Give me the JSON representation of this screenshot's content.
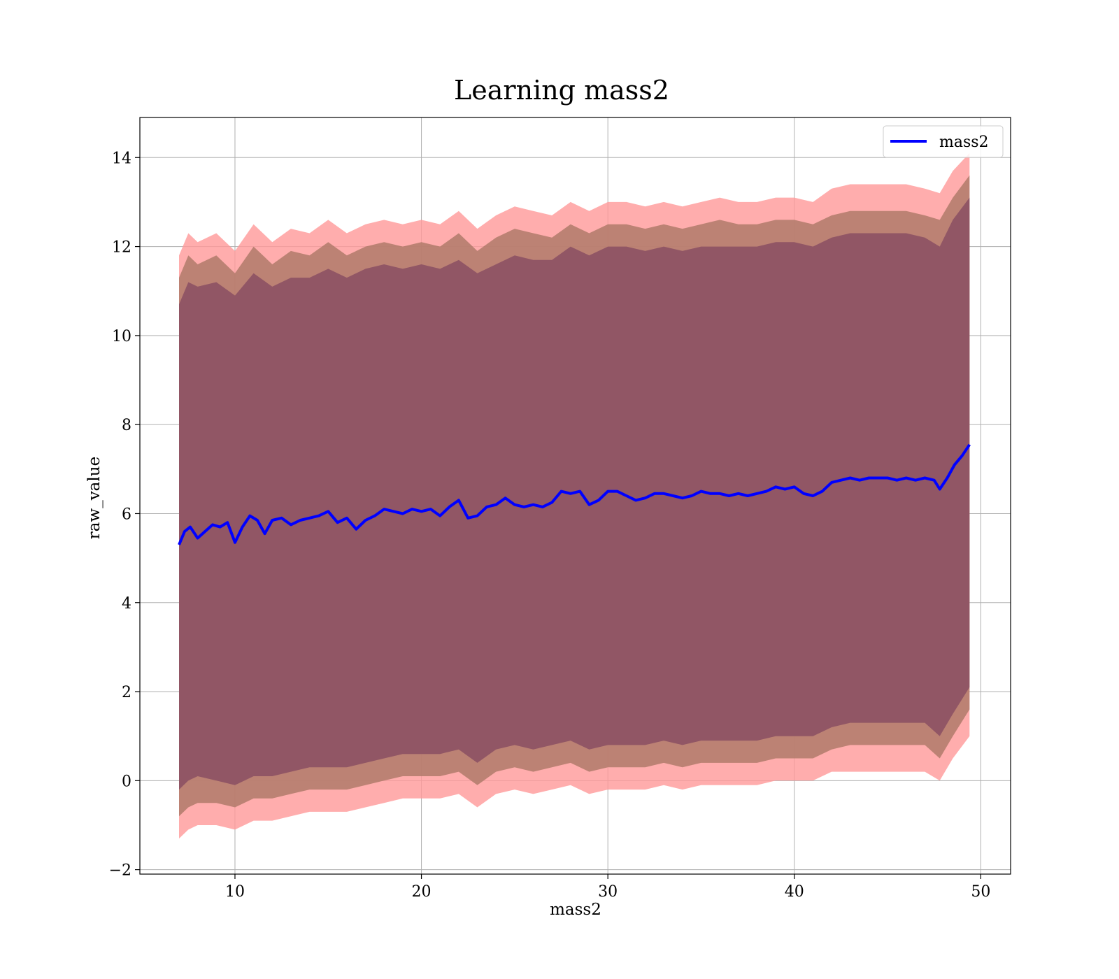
{
  "colors": {
    "line": "#0000ff",
    "band_outer": "#ff9999",
    "band_middle": "#b07a6a",
    "band_inner": "#8a4f63",
    "grid": "#b0b0b0",
    "axes": "#000000"
  },
  "chart_data": {
    "type": "area",
    "title": "Learning mass2",
    "xlabel": "mass2",
    "ylabel": "raw_value",
    "xlim": [
      4.9,
      51.6
    ],
    "ylim": [
      -2.1,
      14.9
    ],
    "xticks": [
      10,
      20,
      30,
      40,
      50
    ],
    "yticks": [
      -2,
      0,
      2,
      4,
      6,
      8,
      10,
      12,
      14
    ],
    "grid": true,
    "legend": {
      "position": "top-right",
      "entries": [
        "mass2"
      ]
    },
    "bands_description_levels": [
      "outer",
      "middle",
      "inner"
    ],
    "series": [
      {
        "name": "mass2",
        "kind": "line",
        "x": [
          7.0,
          7.3,
          7.6,
          8.0,
          8.4,
          8.8,
          9.2,
          9.6,
          10.0,
          10.4,
          10.8,
          11.2,
          11.6,
          12.0,
          12.5,
          13.0,
          13.5,
          14.0,
          14.5,
          15.0,
          15.5,
          16.0,
          16.5,
          17.0,
          17.5,
          18.0,
          18.5,
          19.0,
          19.5,
          20.0,
          20.5,
          21.0,
          21.5,
          22.0,
          22.5,
          23.0,
          23.5,
          24.0,
          24.5,
          25.0,
          25.5,
          26.0,
          26.5,
          27.0,
          27.5,
          28.0,
          28.5,
          29.0,
          29.5,
          30.0,
          30.5,
          31.0,
          31.5,
          32.0,
          32.5,
          33.0,
          33.5,
          34.0,
          34.5,
          35.0,
          35.5,
          36.0,
          36.5,
          37.0,
          37.5,
          38.0,
          38.5,
          39.0,
          39.5,
          40.0,
          40.5,
          41.0,
          41.5,
          42.0,
          42.5,
          43.0,
          43.5,
          44.0,
          44.5,
          45.0,
          45.5,
          46.0,
          46.5,
          47.0,
          47.5,
          47.8,
          48.2,
          48.6,
          49.0,
          49.4
        ],
        "y": [
          5.3,
          5.6,
          5.7,
          5.45,
          5.6,
          5.75,
          5.7,
          5.8,
          5.35,
          5.7,
          5.95,
          5.85,
          5.55,
          5.85,
          5.9,
          5.75,
          5.85,
          5.9,
          5.95,
          6.05,
          5.8,
          5.9,
          5.65,
          5.85,
          5.95,
          6.1,
          6.05,
          6.0,
          6.1,
          6.05,
          6.1,
          5.95,
          6.15,
          6.3,
          5.9,
          5.95,
          6.15,
          6.2,
          6.35,
          6.2,
          6.15,
          6.2,
          6.15,
          6.25,
          6.5,
          6.45,
          6.5,
          6.2,
          6.3,
          6.5,
          6.5,
          6.4,
          6.3,
          6.35,
          6.45,
          6.45,
          6.4,
          6.35,
          6.4,
          6.5,
          6.45,
          6.45,
          6.4,
          6.45,
          6.4,
          6.45,
          6.5,
          6.6,
          6.55,
          6.6,
          6.45,
          6.4,
          6.5,
          6.7,
          6.75,
          6.8,
          6.75,
          6.8,
          6.8,
          6.8,
          6.75,
          6.8,
          6.75,
          6.8,
          6.75,
          6.55,
          6.8,
          7.1,
          7.3,
          7.55
        ]
      },
      {
        "name": "",
        "kind": "band",
        "level": "outer",
        "x": [
          7.0,
          7.5,
          8.0,
          9.0,
          10.0,
          11.0,
          12.0,
          13.0,
          14.0,
          15.0,
          16.0,
          17.0,
          18.0,
          19.0,
          20.0,
          21.0,
          22.0,
          23.0,
          24.0,
          25.0,
          26.0,
          27.0,
          28.0,
          29.0,
          30.0,
          31.0,
          32.0,
          33.0,
          34.0,
          35.0,
          36.0,
          37.0,
          38.0,
          39.0,
          40.0,
          41.0,
          42.0,
          43.0,
          44.0,
          45.0,
          46.0,
          47.0,
          47.8,
          48.5,
          49.4
        ],
        "upper": [
          11.8,
          12.3,
          12.1,
          12.3,
          11.9,
          12.5,
          12.1,
          12.4,
          12.3,
          12.6,
          12.3,
          12.5,
          12.6,
          12.5,
          12.6,
          12.5,
          12.8,
          12.4,
          12.7,
          12.9,
          12.8,
          12.7,
          13.0,
          12.8,
          13.0,
          13.0,
          12.9,
          13.0,
          12.9,
          13.0,
          13.1,
          13.0,
          13.0,
          13.1,
          13.1,
          13.0,
          13.3,
          13.4,
          13.4,
          13.4,
          13.4,
          13.3,
          13.2,
          13.7,
          14.1
        ],
        "lower": [
          -1.3,
          -1.1,
          -1.0,
          -1.0,
          -1.1,
          -0.9,
          -0.9,
          -0.8,
          -0.7,
          -0.7,
          -0.7,
          -0.6,
          -0.5,
          -0.4,
          -0.4,
          -0.4,
          -0.3,
          -0.6,
          -0.3,
          -0.2,
          -0.3,
          -0.2,
          -0.1,
          -0.3,
          -0.2,
          -0.2,
          -0.2,
          -0.1,
          -0.2,
          -0.1,
          -0.1,
          -0.1,
          -0.1,
          0.0,
          0.0,
          0.0,
          0.2,
          0.2,
          0.2,
          0.2,
          0.2,
          0.2,
          0.0,
          0.5,
          1.0
        ]
      },
      {
        "name": "",
        "kind": "band",
        "level": "middle",
        "x": [
          7.0,
          7.5,
          8.0,
          9.0,
          10.0,
          11.0,
          12.0,
          13.0,
          14.0,
          15.0,
          16.0,
          17.0,
          18.0,
          19.0,
          20.0,
          21.0,
          22.0,
          23.0,
          24.0,
          25.0,
          26.0,
          27.0,
          28.0,
          29.0,
          30.0,
          31.0,
          32.0,
          33.0,
          34.0,
          35.0,
          36.0,
          37.0,
          38.0,
          39.0,
          40.0,
          41.0,
          42.0,
          43.0,
          44.0,
          45.0,
          46.0,
          47.0,
          47.8,
          48.5,
          49.4
        ],
        "upper": [
          11.3,
          11.8,
          11.6,
          11.8,
          11.4,
          12.0,
          11.6,
          11.9,
          11.8,
          12.1,
          11.8,
          12.0,
          12.1,
          12.0,
          12.1,
          12.0,
          12.3,
          11.9,
          12.2,
          12.4,
          12.3,
          12.2,
          12.5,
          12.3,
          12.5,
          12.5,
          12.4,
          12.5,
          12.4,
          12.5,
          12.6,
          12.5,
          12.5,
          12.6,
          12.6,
          12.5,
          12.7,
          12.8,
          12.8,
          12.8,
          12.8,
          12.7,
          12.6,
          13.1,
          13.6
        ],
        "lower": [
          -0.8,
          -0.6,
          -0.5,
          -0.5,
          -0.6,
          -0.4,
          -0.4,
          -0.3,
          -0.2,
          -0.2,
          -0.2,
          -0.1,
          0.0,
          0.1,
          0.1,
          0.1,
          0.2,
          -0.1,
          0.2,
          0.3,
          0.2,
          0.3,
          0.4,
          0.2,
          0.3,
          0.3,
          0.3,
          0.4,
          0.3,
          0.4,
          0.4,
          0.4,
          0.4,
          0.5,
          0.5,
          0.5,
          0.7,
          0.8,
          0.8,
          0.8,
          0.8,
          0.8,
          0.5,
          1.0,
          1.6
        ]
      },
      {
        "name": "",
        "kind": "band",
        "level": "inner",
        "x": [
          7.0,
          7.5,
          8.0,
          9.0,
          10.0,
          11.0,
          12.0,
          13.0,
          14.0,
          15.0,
          16.0,
          17.0,
          18.0,
          19.0,
          20.0,
          21.0,
          22.0,
          23.0,
          24.0,
          25.0,
          26.0,
          27.0,
          28.0,
          29.0,
          30.0,
          31.0,
          32.0,
          33.0,
          34.0,
          35.0,
          36.0,
          37.0,
          38.0,
          39.0,
          40.0,
          41.0,
          42.0,
          43.0,
          44.0,
          45.0,
          46.0,
          47.0,
          47.8,
          48.5,
          49.4
        ],
        "upper": [
          10.7,
          11.2,
          11.1,
          11.2,
          10.9,
          11.4,
          11.1,
          11.3,
          11.3,
          11.5,
          11.3,
          11.5,
          11.6,
          11.5,
          11.6,
          11.5,
          11.7,
          11.4,
          11.6,
          11.8,
          11.7,
          11.7,
          12.0,
          11.8,
          12.0,
          12.0,
          11.9,
          12.0,
          11.9,
          12.0,
          12.0,
          12.0,
          12.0,
          12.1,
          12.1,
          12.0,
          12.2,
          12.3,
          12.3,
          12.3,
          12.3,
          12.2,
          12.0,
          12.6,
          13.1
        ],
        "lower": [
          -0.2,
          0.0,
          0.1,
          0.0,
          -0.1,
          0.1,
          0.1,
          0.2,
          0.3,
          0.3,
          0.3,
          0.4,
          0.5,
          0.6,
          0.6,
          0.6,
          0.7,
          0.4,
          0.7,
          0.8,
          0.7,
          0.8,
          0.9,
          0.7,
          0.8,
          0.8,
          0.8,
          0.9,
          0.8,
          0.9,
          0.9,
          0.9,
          0.9,
          1.0,
          1.0,
          1.0,
          1.2,
          1.3,
          1.3,
          1.3,
          1.3,
          1.3,
          1.0,
          1.5,
          2.1
        ]
      }
    ]
  }
}
